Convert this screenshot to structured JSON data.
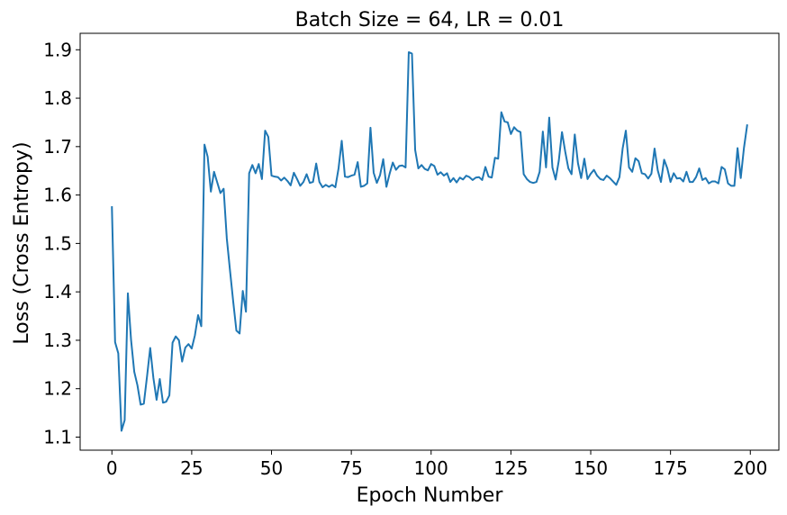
{
  "chart_data": {
    "type": "line",
    "title": "Batch Size = 64, LR = 0.01",
    "xlabel": "Epoch Number",
    "ylabel": "Loss (Cross Entropy)",
    "xlim": [
      -9.95,
      208.95
    ],
    "ylim": [
      1.073,
      1.934
    ],
    "xticks": [
      0,
      25,
      50,
      75,
      100,
      125,
      150,
      175,
      200
    ],
    "yticks": [
      1.1,
      1.2,
      1.3,
      1.4,
      1.5,
      1.6,
      1.7,
      1.8,
      1.9
    ],
    "xtick_labels": [
      "0",
      "25",
      "50",
      "75",
      "100",
      "125",
      "150",
      "175",
      "200"
    ],
    "ytick_labels": [
      "1.1",
      "1.2",
      "1.3",
      "1.4",
      "1.5",
      "1.6",
      "1.7",
      "1.8",
      "1.9"
    ],
    "grid": false,
    "series": [
      {
        "color": "#1f77b4",
        "x": [
          0,
          1,
          2,
          3,
          4,
          5,
          6,
          7,
          8,
          9,
          10,
          11,
          12,
          13,
          14,
          15,
          16,
          17,
          18,
          19,
          20,
          21,
          22,
          23,
          24,
          25,
          26,
          27,
          28,
          29,
          30,
          31,
          32,
          33,
          34,
          35,
          36,
          37,
          38,
          39,
          40,
          41,
          42,
          43,
          44,
          45,
          46,
          47,
          48,
          49,
          50,
          51,
          52,
          53,
          54,
          55,
          56,
          57,
          58,
          59,
          60,
          61,
          62,
          63,
          64,
          65,
          66,
          67,
          68,
          69,
          70,
          71,
          72,
          73,
          74,
          75,
          76,
          77,
          78,
          79,
          80,
          81,
          82,
          83,
          84,
          85,
          86,
          87,
          88,
          89,
          90,
          91,
          92,
          93,
          94,
          95,
          96,
          97,
          98,
          99,
          100,
          101,
          102,
          103,
          104,
          105,
          106,
          107,
          108,
          109,
          110,
          111,
          112,
          113,
          114,
          115,
          116,
          117,
          118,
          119,
          120,
          121,
          122,
          123,
          124,
          125,
          126,
          127,
          128,
          129,
          130,
          131,
          132,
          133,
          134,
          135,
          136,
          137,
          138,
          139,
          140,
          141,
          142,
          143,
          144,
          145,
          146,
          147,
          148,
          149,
          150,
          151,
          152,
          153,
          154,
          155,
          156,
          157,
          158,
          159,
          160,
          161,
          162,
          163,
          164,
          165,
          166,
          167,
          168,
          169,
          170,
          171,
          172,
          173,
          174,
          175,
          176,
          177,
          178,
          179,
          180,
          181,
          182,
          183,
          184,
          185,
          186,
          187,
          188,
          189,
          190,
          191,
          192,
          193,
          194,
          195,
          196,
          197,
          198,
          199
        ],
        "y": [
          1.575,
          1.296,
          1.273,
          1.113,
          1.135,
          1.397,
          1.301,
          1.235,
          1.207,
          1.167,
          1.169,
          1.225,
          1.284,
          1.222,
          1.177,
          1.22,
          1.171,
          1.173,
          1.186,
          1.295,
          1.308,
          1.3,
          1.256,
          1.285,
          1.292,
          1.283,
          1.31,
          1.352,
          1.329,
          1.704,
          1.679,
          1.607,
          1.648,
          1.626,
          1.604,
          1.613,
          1.51,
          1.444,
          1.38,
          1.32,
          1.314,
          1.402,
          1.359,
          1.645,
          1.662,
          1.645,
          1.664,
          1.633,
          1.733,
          1.72,
          1.64,
          1.638,
          1.637,
          1.63,
          1.636,
          1.629,
          1.62,
          1.646,
          1.633,
          1.619,
          1.627,
          1.643,
          1.625,
          1.627,
          1.665,
          1.627,
          1.616,
          1.621,
          1.617,
          1.621,
          1.616,
          1.655,
          1.712,
          1.638,
          1.637,
          1.64,
          1.642,
          1.668,
          1.617,
          1.619,
          1.624,
          1.739,
          1.646,
          1.625,
          1.641,
          1.674,
          1.617,
          1.644,
          1.667,
          1.652,
          1.66,
          1.661,
          1.657,
          1.895,
          1.892,
          1.693,
          1.655,
          1.662,
          1.654,
          1.651,
          1.664,
          1.66,
          1.642,
          1.647,
          1.64,
          1.645,
          1.627,
          1.635,
          1.626,
          1.636,
          1.632,
          1.64,
          1.637,
          1.631,
          1.636,
          1.637,
          1.631,
          1.658,
          1.638,
          1.636,
          1.677,
          1.675,
          1.771,
          1.752,
          1.75,
          1.726,
          1.74,
          1.733,
          1.73,
          1.643,
          1.633,
          1.627,
          1.625,
          1.627,
          1.648,
          1.731,
          1.657,
          1.76,
          1.657,
          1.632,
          1.671,
          1.73,
          1.69,
          1.655,
          1.643,
          1.725,
          1.666,
          1.635,
          1.675,
          1.633,
          1.644,
          1.652,
          1.64,
          1.633,
          1.631,
          1.64,
          1.635,
          1.628,
          1.621,
          1.637,
          1.696,
          1.733,
          1.657,
          1.648,
          1.676,
          1.67,
          1.645,
          1.643,
          1.634,
          1.644,
          1.696,
          1.651,
          1.627,
          1.673,
          1.655,
          1.627,
          1.645,
          1.634,
          1.635,
          1.628,
          1.648,
          1.627,
          1.627,
          1.637,
          1.655,
          1.631,
          1.635,
          1.624,
          1.628,
          1.628,
          1.624,
          1.658,
          1.653,
          1.624,
          1.619,
          1.619,
          1.697,
          1.635,
          1.697,
          1.744
        ]
      }
    ]
  }
}
